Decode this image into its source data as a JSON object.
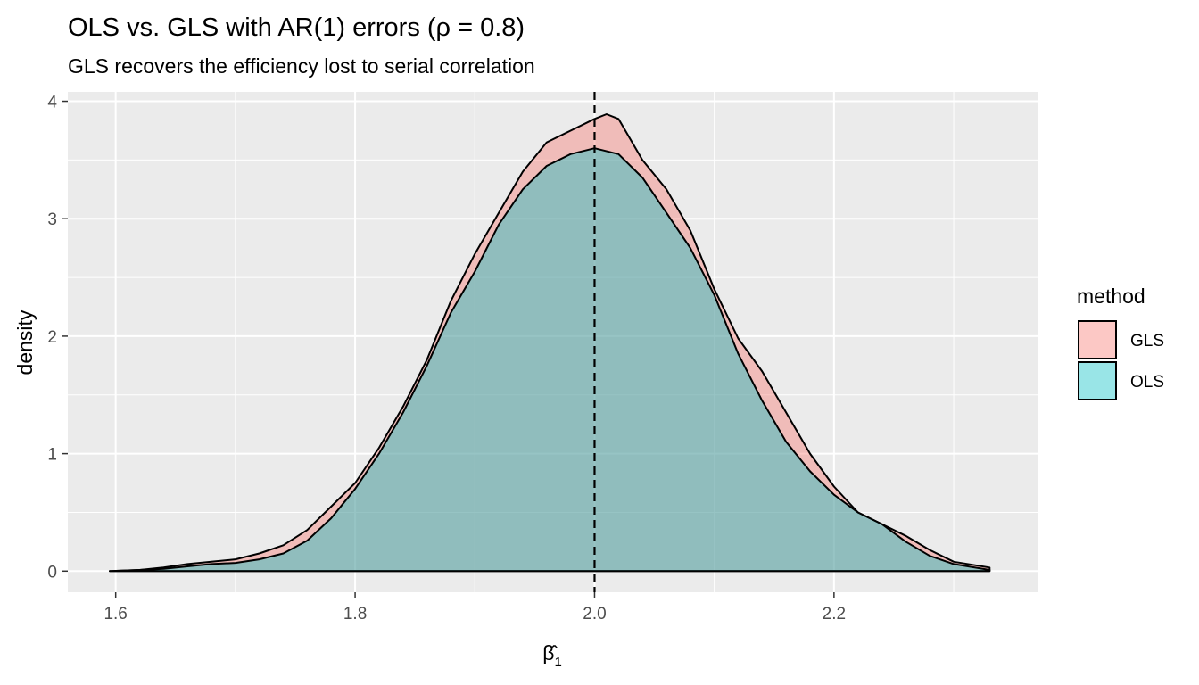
{
  "chart_data": {
    "type": "area",
    "title": "OLS vs. GLS with AR(1) errors (ρ = 0.8)",
    "subtitle": "GLS recovers the efficiency lost to serial correlation",
    "xlabel": "β̂",
    "xlabel_subscript": "1",
    "ylabel": "density",
    "xlim": [
      1.56,
      2.37
    ],
    "ylim": [
      -0.18,
      4.08
    ],
    "x_ticks": [
      1.6,
      1.8,
      2.0,
      2.2
    ],
    "x_tick_labels": [
      "1.6",
      "1.8",
      "2.0",
      "2.2"
    ],
    "y_ticks": [
      0,
      1,
      2,
      3,
      4
    ],
    "y_tick_labels": [
      "0",
      "1",
      "2",
      "3",
      "4"
    ],
    "grid": true,
    "reference_line": {
      "x": 2.0,
      "style": "dashed"
    },
    "legend": {
      "title": "method",
      "placement": "right"
    },
    "series": [
      {
        "name": "GLS",
        "color": "#F8766D",
        "points": [
          [
            1.595,
            0.0
          ],
          [
            1.62,
            0.01
          ],
          [
            1.64,
            0.03
          ],
          [
            1.66,
            0.06
          ],
          [
            1.68,
            0.08
          ],
          [
            1.7,
            0.1
          ],
          [
            1.72,
            0.15
          ],
          [
            1.74,
            0.22
          ],
          [
            1.76,
            0.35
          ],
          [
            1.78,
            0.55
          ],
          [
            1.8,
            0.75
          ],
          [
            1.82,
            1.05
          ],
          [
            1.84,
            1.4
          ],
          [
            1.86,
            1.8
          ],
          [
            1.88,
            2.3
          ],
          [
            1.9,
            2.7
          ],
          [
            1.92,
            3.05
          ],
          [
            1.94,
            3.4
          ],
          [
            1.96,
            3.65
          ],
          [
            1.98,
            3.75
          ],
          [
            2.0,
            3.85
          ],
          [
            2.01,
            3.89
          ],
          [
            2.02,
            3.85
          ],
          [
            2.04,
            3.5
          ],
          [
            2.06,
            3.25
          ],
          [
            2.08,
            2.9
          ],
          [
            2.1,
            2.4
          ],
          [
            2.12,
            1.98
          ],
          [
            2.14,
            1.7
          ],
          [
            2.16,
            1.35
          ],
          [
            2.18,
            1.0
          ],
          [
            2.2,
            0.72
          ],
          [
            2.22,
            0.5
          ],
          [
            2.24,
            0.4
          ],
          [
            2.26,
            0.3
          ],
          [
            2.28,
            0.18
          ],
          [
            2.3,
            0.08
          ],
          [
            2.33,
            0.03
          ]
        ]
      },
      {
        "name": "OLS",
        "color": "#00BFC4",
        "points": [
          [
            1.595,
            0.0
          ],
          [
            1.62,
            0.01
          ],
          [
            1.64,
            0.02
          ],
          [
            1.66,
            0.04
          ],
          [
            1.68,
            0.06
          ],
          [
            1.7,
            0.07
          ],
          [
            1.72,
            0.1
          ],
          [
            1.74,
            0.15
          ],
          [
            1.76,
            0.26
          ],
          [
            1.78,
            0.45
          ],
          [
            1.8,
            0.7
          ],
          [
            1.82,
            1.0
          ],
          [
            1.84,
            1.35
          ],
          [
            1.86,
            1.75
          ],
          [
            1.88,
            2.2
          ],
          [
            1.9,
            2.55
          ],
          [
            1.92,
            2.95
          ],
          [
            1.94,
            3.25
          ],
          [
            1.96,
            3.45
          ],
          [
            1.98,
            3.55
          ],
          [
            2.0,
            3.6
          ],
          [
            2.02,
            3.55
          ],
          [
            2.04,
            3.35
          ],
          [
            2.06,
            3.05
          ],
          [
            2.08,
            2.75
          ],
          [
            2.1,
            2.35
          ],
          [
            2.12,
            1.85
          ],
          [
            2.14,
            1.45
          ],
          [
            2.16,
            1.1
          ],
          [
            2.18,
            0.85
          ],
          [
            2.2,
            0.65
          ],
          [
            2.22,
            0.5
          ],
          [
            2.24,
            0.4
          ],
          [
            2.26,
            0.25
          ],
          [
            2.28,
            0.13
          ],
          [
            2.3,
            0.06
          ],
          [
            2.33,
            0.01
          ]
        ]
      }
    ]
  }
}
